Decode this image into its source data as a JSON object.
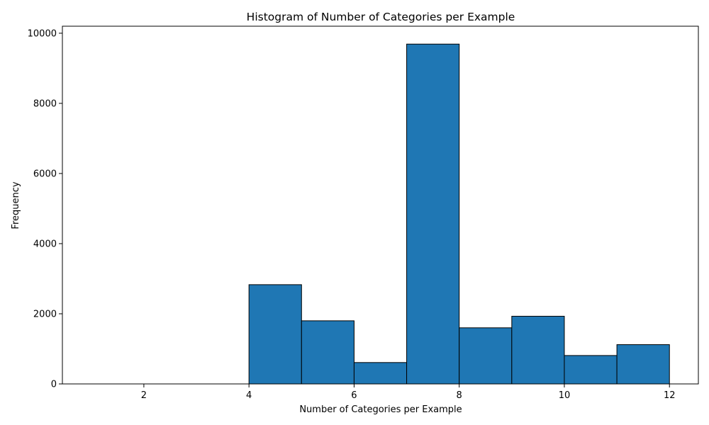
{
  "chart_data": {
    "type": "bar",
    "title": "Histogram of Number of Categories per Example",
    "xlabel": "Number of Categories per Example",
    "ylabel": "Frequency",
    "xlim": [
      0.45,
      12.55
    ],
    "ylim": [
      0,
      10200
    ],
    "xticks": [
      2,
      4,
      6,
      8,
      10,
      12
    ],
    "yticks": [
      0,
      2000,
      4000,
      6000,
      8000,
      10000
    ],
    "bin_edges": [
      1,
      2,
      3,
      4,
      5,
      6,
      7,
      8,
      9,
      10,
      11,
      12
    ],
    "values": [
      0,
      0,
      0,
      2830,
      1800,
      610,
      9690,
      1600,
      1930,
      810,
      1120
    ],
    "bar_color": "#1f77b4",
    "edge_color": "#000000",
    "grid": false,
    "legend": "none"
  }
}
